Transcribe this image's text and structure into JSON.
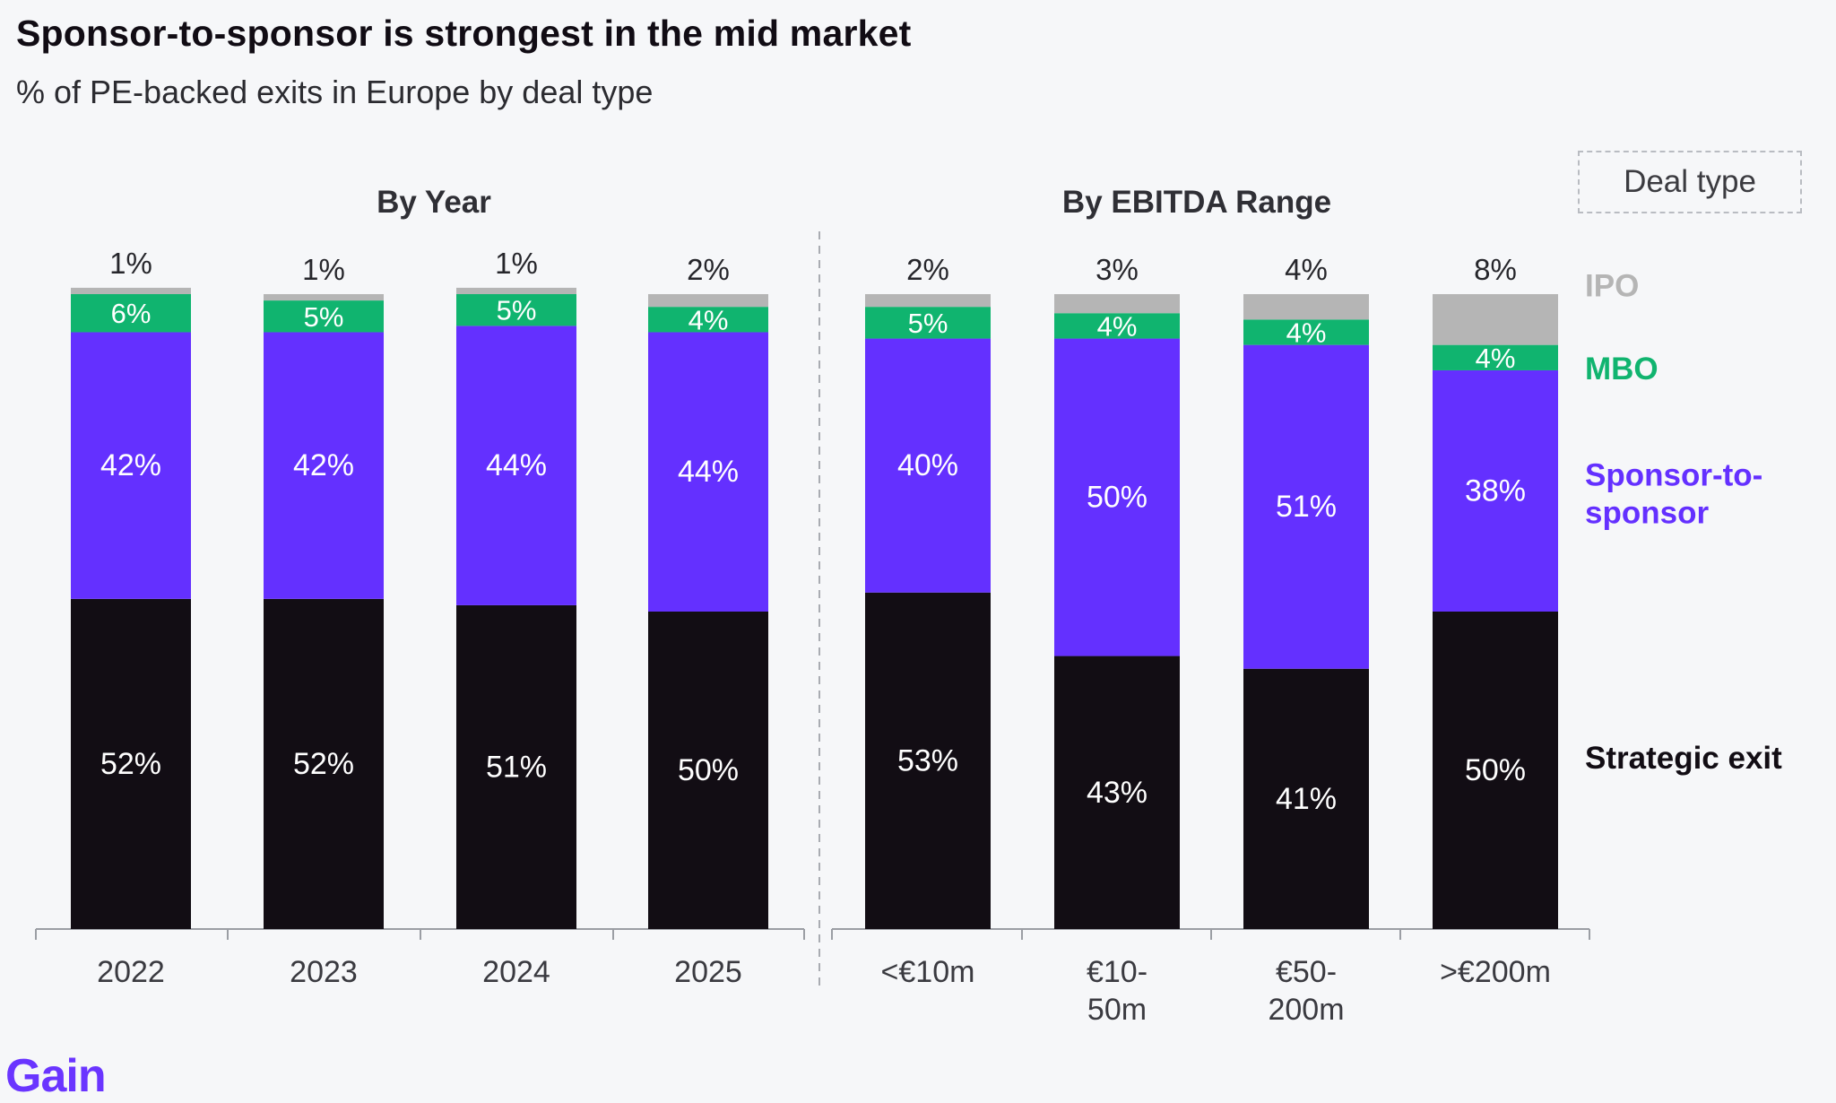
{
  "header": {
    "title": "Sponsor-to-sponsor is strongest in the mid market",
    "subtitle": "% of PE-backed exits in Europe by deal type"
  },
  "legend": {
    "title": "Deal type",
    "items": [
      {
        "key": "ipo",
        "label": "IPO",
        "color": "#b5b5b5"
      },
      {
        "key": "mbo",
        "label": "MBO",
        "color": "#10b46f"
      },
      {
        "key": "s2s",
        "label": "Sponsor-to-sponsor",
        "lines": [
          "Sponsor-to-",
          "sponsor"
        ],
        "color": "#6430ff"
      },
      {
        "key": "strategic",
        "label": "Strategic exit",
        "color": "#120d14"
      }
    ]
  },
  "logo": {
    "text": "Gain"
  },
  "chart_data": {
    "type": "bar",
    "stacked": true,
    "unit": "%",
    "panels": [
      {
        "title": "By Year",
        "categories": [
          "2022",
          "2023",
          "2024",
          "2025"
        ],
        "series": [
          {
            "name": "Strategic exit",
            "values": [
              52,
              52,
              51,
              50
            ]
          },
          {
            "name": "Sponsor-to-sponsor",
            "values": [
              42,
              42,
              44,
              44
            ]
          },
          {
            "name": "MBO",
            "values": [
              6,
              5,
              5,
              4
            ]
          },
          {
            "name": "IPO",
            "values": [
              1,
              1,
              1,
              2
            ]
          }
        ]
      },
      {
        "title": "By EBITDA Range",
        "categories": [
          "<€10m",
          "€10-50m",
          "€50-200m",
          ">€200m"
        ],
        "category_lines": [
          [
            "<€10m"
          ],
          [
            "€10-",
            "50m"
          ],
          [
            "€50-",
            "200m"
          ],
          [
            ">€200m"
          ]
        ],
        "series": [
          {
            "name": "Strategic exit",
            "values": [
              53,
              43,
              41,
              50
            ]
          },
          {
            "name": "Sponsor-to-sponsor",
            "values": [
              40,
              50,
              51,
              38
            ]
          },
          {
            "name": "MBO",
            "values": [
              5,
              4,
              4,
              4
            ]
          },
          {
            "name": "IPO",
            "values": [
              2,
              3,
              4,
              8
            ]
          }
        ]
      }
    ]
  }
}
